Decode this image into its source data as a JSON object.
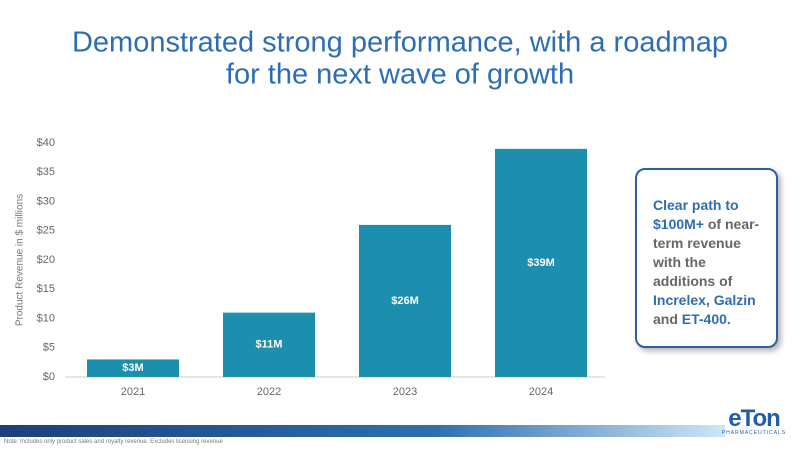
{
  "title_lines": [
    "Demonstrated strong performance, with a roadmap",
    "for the next wave of growth"
  ],
  "chart_data": {
    "type": "bar",
    "ylabel": "Product Revenue in $ millions",
    "categories": [
      "2021",
      "2022",
      "2023",
      "2024"
    ],
    "values": [
      3,
      11,
      26,
      39
    ],
    "value_labels": [
      "$3M",
      "$11M",
      "$26M",
      "$39M"
    ],
    "color": "#1b8fad",
    "ylim": [
      0,
      40
    ],
    "yticks": [
      {
        "value": 0,
        "label": "$0"
      },
      {
        "value": 5,
        "label": "$5"
      },
      {
        "value": 10,
        "label": "$10"
      },
      {
        "value": 15,
        "label": "$15"
      },
      {
        "value": 20,
        "label": "$20"
      },
      {
        "value": 25,
        "label": "$25"
      },
      {
        "value": 30,
        "label": "$30"
      },
      {
        "value": 35,
        "label": "$35"
      },
      {
        "value": 40,
        "label": "$40"
      }
    ],
    "grid": false
  },
  "callout": {
    "parts": [
      {
        "text": "Clear path to",
        "highlight": true
      },
      {
        "text": "$100M+",
        "highlight": true
      },
      {
        "text": "of near-term revenue with the additions of",
        "highlight": false
      },
      {
        "text": "Increlex",
        "highlight": true
      },
      {
        "text": ",",
        "highlight": false
      },
      {
        "text": "Galzin",
        "highlight": true
      },
      {
        "text": "and",
        "highlight": false
      },
      {
        "text": "ET-400",
        "highlight": true
      },
      {
        "text": ".",
        "highlight": false
      }
    ]
  },
  "note": "Note: Includes only product sales and royalty revenue. Excludes licensing revenue",
  "logo": {
    "name": "eTon",
    "subtitle": "PHARMACEUTICALS"
  }
}
